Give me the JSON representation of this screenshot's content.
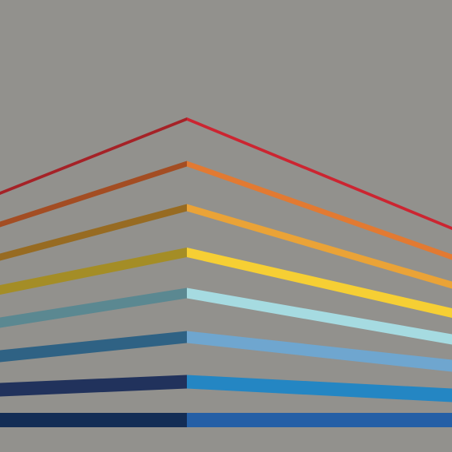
{
  "background": "#92918d",
  "bands": [
    {
      "name": "red",
      "left_color": "#a52227",
      "right_color": "#cc2531"
    },
    {
      "name": "orange",
      "left_color": "#a34d23",
      "right_color": "#e27a32"
    },
    {
      "name": "amber",
      "left_color": "#976b22",
      "right_color": "#eaa337"
    },
    {
      "name": "gold",
      "left_color": "#a48d26",
      "right_color": "#f6cf34"
    },
    {
      "name": "teal",
      "left_color": "#5b8891",
      "right_color": "#a6dbe1"
    },
    {
      "name": "steel-blue",
      "left_color": "#2f6284",
      "right_color": "#6fa6cf"
    },
    {
      "name": "blue",
      "left_color": "#21325c",
      "right_color": "#2486c3"
    },
    {
      "name": "navy",
      "left_color": "#132d55",
      "right_color": "#245fa6"
    }
  ]
}
